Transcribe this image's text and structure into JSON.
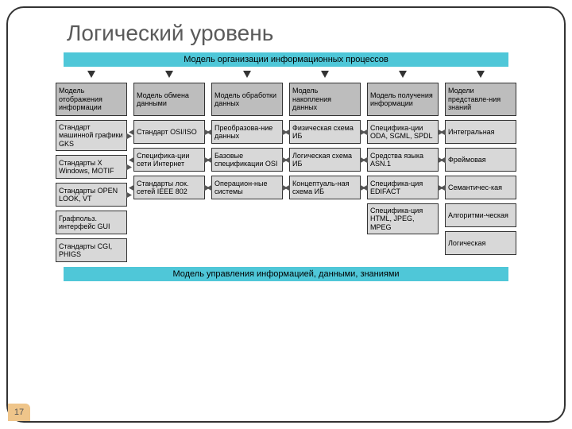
{
  "title": "Логический уровень",
  "page_number": "17",
  "colors": {
    "banner_bg": "#4fc7d8",
    "head_bg": "#bdbdbd",
    "box_bg": "#d8d8d8",
    "pagenum_bg": "#efc58a",
    "border": "#333333"
  },
  "top_banner": "Модель организации информационных процессов",
  "bottom_banner": "Модель управления информацией, данными, знаниями",
  "columns": [
    {
      "head": "Модель отображения информации",
      "items": [
        {
          "text": "Стандарт машинной графики GKS",
          "arrow": "right"
        },
        {
          "text": "Стандарты X Windows, MOTIF",
          "arrow": "right"
        },
        {
          "text": "Стандарты OPEN LOOK, VT",
          "arrow": "right"
        },
        {
          "text": "Графпольз. интерфейс GUI",
          "arrow": null
        },
        {
          "text": "Стандарты CGI, PHIGS",
          "arrow": null
        }
      ]
    },
    {
      "head": "Модель обмена данными",
      "items": [
        {
          "text": "Стандарт OSI/ISO",
          "arrow": "both"
        },
        {
          "text": "Специфика-ции сети Интернет",
          "arrow": "both"
        },
        {
          "text": "Стандарты лок. сетей IEEE 802",
          "arrow": "both"
        }
      ]
    },
    {
      "head": "Модель обработки данных",
      "items": [
        {
          "text": "Преобразова-ние данных",
          "arrow": "both"
        },
        {
          "text": "Базовые спецификации OSI",
          "arrow": "both"
        },
        {
          "text": "Операцион-ные системы",
          "arrow": "both"
        }
      ]
    },
    {
      "head": "Модель накопления данных",
      "items": [
        {
          "text": "Физическая схема ИБ",
          "arrow": "both"
        },
        {
          "text": "Логическая схема ИБ",
          "arrow": "both"
        },
        {
          "text": "Концептуаль-ная схема ИБ",
          "arrow": "both"
        }
      ]
    },
    {
      "head": "Модель получения информации",
      "items": [
        {
          "text": "Специфика-ции ODA, SGML, SPDL",
          "arrow": "both"
        },
        {
          "text": "Средства языка ASN.1",
          "arrow": "both"
        },
        {
          "text": "Специфика-ция EDIFACT",
          "arrow": "both"
        },
        {
          "text": "Специфика-ция HTML, JPEG, MPEG",
          "arrow": null
        }
      ]
    },
    {
      "head": "Модели представле-ния знаний",
      "items": [
        {
          "text": "Интегральная",
          "arrow": "left"
        },
        {
          "text": "Фреймовая",
          "arrow": "left"
        },
        {
          "text": "Семантичес-кая",
          "arrow": "left"
        },
        {
          "text": "Алгоритми-ческая",
          "arrow": null
        },
        {
          "text": "Логическая",
          "arrow": null
        }
      ]
    }
  ]
}
